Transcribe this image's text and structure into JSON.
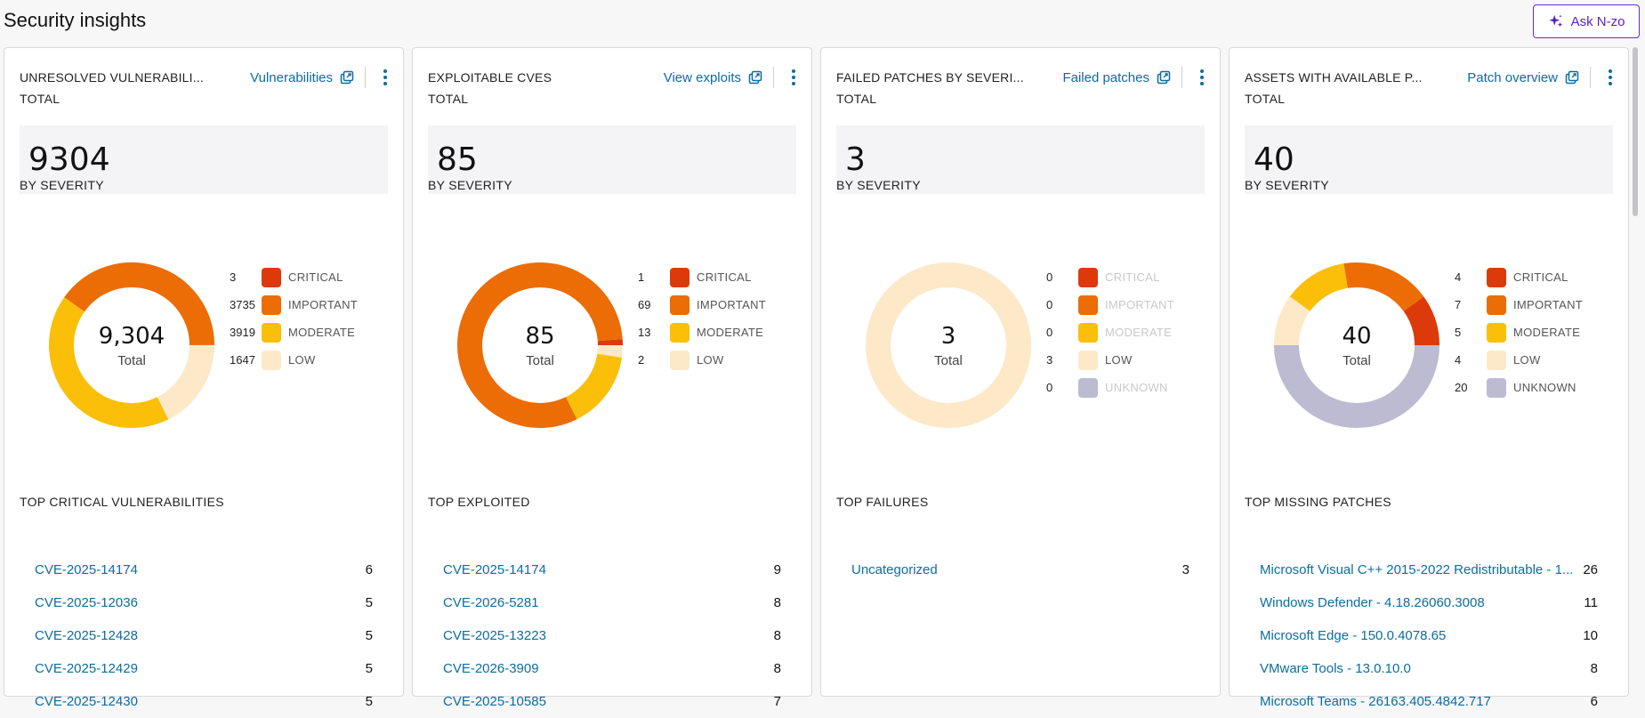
{
  "page": {
    "title": "Security insights",
    "ask_label": "Ask N-zo"
  },
  "colors": {
    "critical": "#dc3a0a",
    "important": "#ec6c05",
    "moderate": "#fbbf09",
    "low": "#fde9c8",
    "unknown": "#bdbbd1",
    "link": "#0b6e9e",
    "accent": "#5a1fc7"
  },
  "cards": [
    {
      "title": "UNRESOLVED VULNERABILI...",
      "link_label": "Vulnerabilities",
      "total_label": "TOTAL",
      "total_value": "9304",
      "severity_label": "BY SEVERITY",
      "donut_value": "9,304",
      "donut_sub": "Total",
      "legend": [
        {
          "count": "3",
          "name": "CRITICAL",
          "color": "#dc3a0a",
          "value": 3,
          "muted": false
        },
        {
          "count": "3735",
          "name": "IMPORTANT",
          "color": "#ec6c05",
          "value": 3735,
          "muted": false
        },
        {
          "count": "3919",
          "name": "MODERATE",
          "color": "#fbbf09",
          "value": 3919,
          "muted": false
        },
        {
          "count": "1647",
          "name": "LOW",
          "color": "#fde9c8",
          "value": 1647,
          "muted": false
        }
      ],
      "top_label": "TOP CRITICAL VULNERABILITIES",
      "top": [
        {
          "name": "CVE-2025-14174",
          "count": "6"
        },
        {
          "name": "CVE-2025-12036",
          "count": "5"
        },
        {
          "name": "CVE-2025-12428",
          "count": "5"
        },
        {
          "name": "CVE-2025-12429",
          "count": "5"
        },
        {
          "name": "CVE-2025-12430",
          "count": "5"
        }
      ]
    },
    {
      "title": "EXPLOITABLE CVES",
      "link_label": "View exploits",
      "total_label": "TOTAL",
      "total_value": "85",
      "severity_label": "BY SEVERITY",
      "donut_value": "85",
      "donut_sub": "Total",
      "legend": [
        {
          "count": "1",
          "name": "CRITICAL",
          "color": "#dc3a0a",
          "value": 1,
          "muted": false
        },
        {
          "count": "69",
          "name": "IMPORTANT",
          "color": "#ec6c05",
          "value": 69,
          "muted": false
        },
        {
          "count": "13",
          "name": "MODERATE",
          "color": "#fbbf09",
          "value": 13,
          "muted": false
        },
        {
          "count": "2",
          "name": "LOW",
          "color": "#fde9c8",
          "value": 2,
          "muted": false
        }
      ],
      "top_label": "TOP EXPLOITED",
      "top": [
        {
          "name": "CVE-2025-14174",
          "count": "9"
        },
        {
          "name": "CVE-2026-5281",
          "count": "8"
        },
        {
          "name": "CVE-2025-13223",
          "count": "8"
        },
        {
          "name": "CVE-2026-3909",
          "count": "8"
        },
        {
          "name": "CVE-2025-10585",
          "count": "7"
        }
      ]
    },
    {
      "title": "FAILED PATCHES BY SEVERI...",
      "link_label": "Failed patches",
      "total_label": "TOTAL",
      "total_value": "3",
      "severity_label": "BY SEVERITY",
      "donut_value": "3",
      "donut_sub": "Total",
      "legend": [
        {
          "count": "0",
          "name": "CRITICAL",
          "color": "#dc3a0a",
          "value": 0,
          "muted": true
        },
        {
          "count": "0",
          "name": "IMPORTANT",
          "color": "#ec6c05",
          "value": 0,
          "muted": true
        },
        {
          "count": "0",
          "name": "MODERATE",
          "color": "#fbbf09",
          "value": 0,
          "muted": true
        },
        {
          "count": "3",
          "name": "LOW",
          "color": "#fde9c8",
          "value": 3,
          "muted": false
        },
        {
          "count": "0",
          "name": "UNKNOWN",
          "color": "#bdbbd1",
          "value": 0,
          "muted": true
        }
      ],
      "top_label": "TOP FAILURES",
      "top": [
        {
          "name": "Uncategorized",
          "count": "3"
        }
      ]
    },
    {
      "title": "ASSETS WITH AVAILABLE P...",
      "link_label": "Patch overview",
      "total_label": "TOTAL",
      "total_value": "40",
      "severity_label": "BY SEVERITY",
      "donut_value": "40",
      "donut_sub": "Total",
      "legend": [
        {
          "count": "4",
          "name": "CRITICAL",
          "color": "#dc3a0a",
          "value": 4,
          "muted": false
        },
        {
          "count": "7",
          "name": "IMPORTANT",
          "color": "#ec6c05",
          "value": 7,
          "muted": false
        },
        {
          "count": "5",
          "name": "MODERATE",
          "color": "#fbbf09",
          "value": 5,
          "muted": false
        },
        {
          "count": "4",
          "name": "LOW",
          "color": "#fde9c8",
          "value": 4,
          "muted": false
        },
        {
          "count": "20",
          "name": "UNKNOWN",
          "color": "#bdbbd1",
          "value": 20,
          "muted": false
        }
      ],
      "top_label": "TOP MISSING PATCHES",
      "top": [
        {
          "name": "Microsoft Visual C++ 2015-2022 Redistributable - 1...",
          "count": "26"
        },
        {
          "name": "Windows Defender - 4.18.26060.3008",
          "count": "11"
        },
        {
          "name": "Microsoft Edge - 150.0.4078.65",
          "count": "10"
        },
        {
          "name": "VMware Tools - 13.0.10.0",
          "count": "8"
        },
        {
          "name": "Microsoft Teams - 26163.405.4842.717",
          "count": "6"
        }
      ]
    }
  ]
}
